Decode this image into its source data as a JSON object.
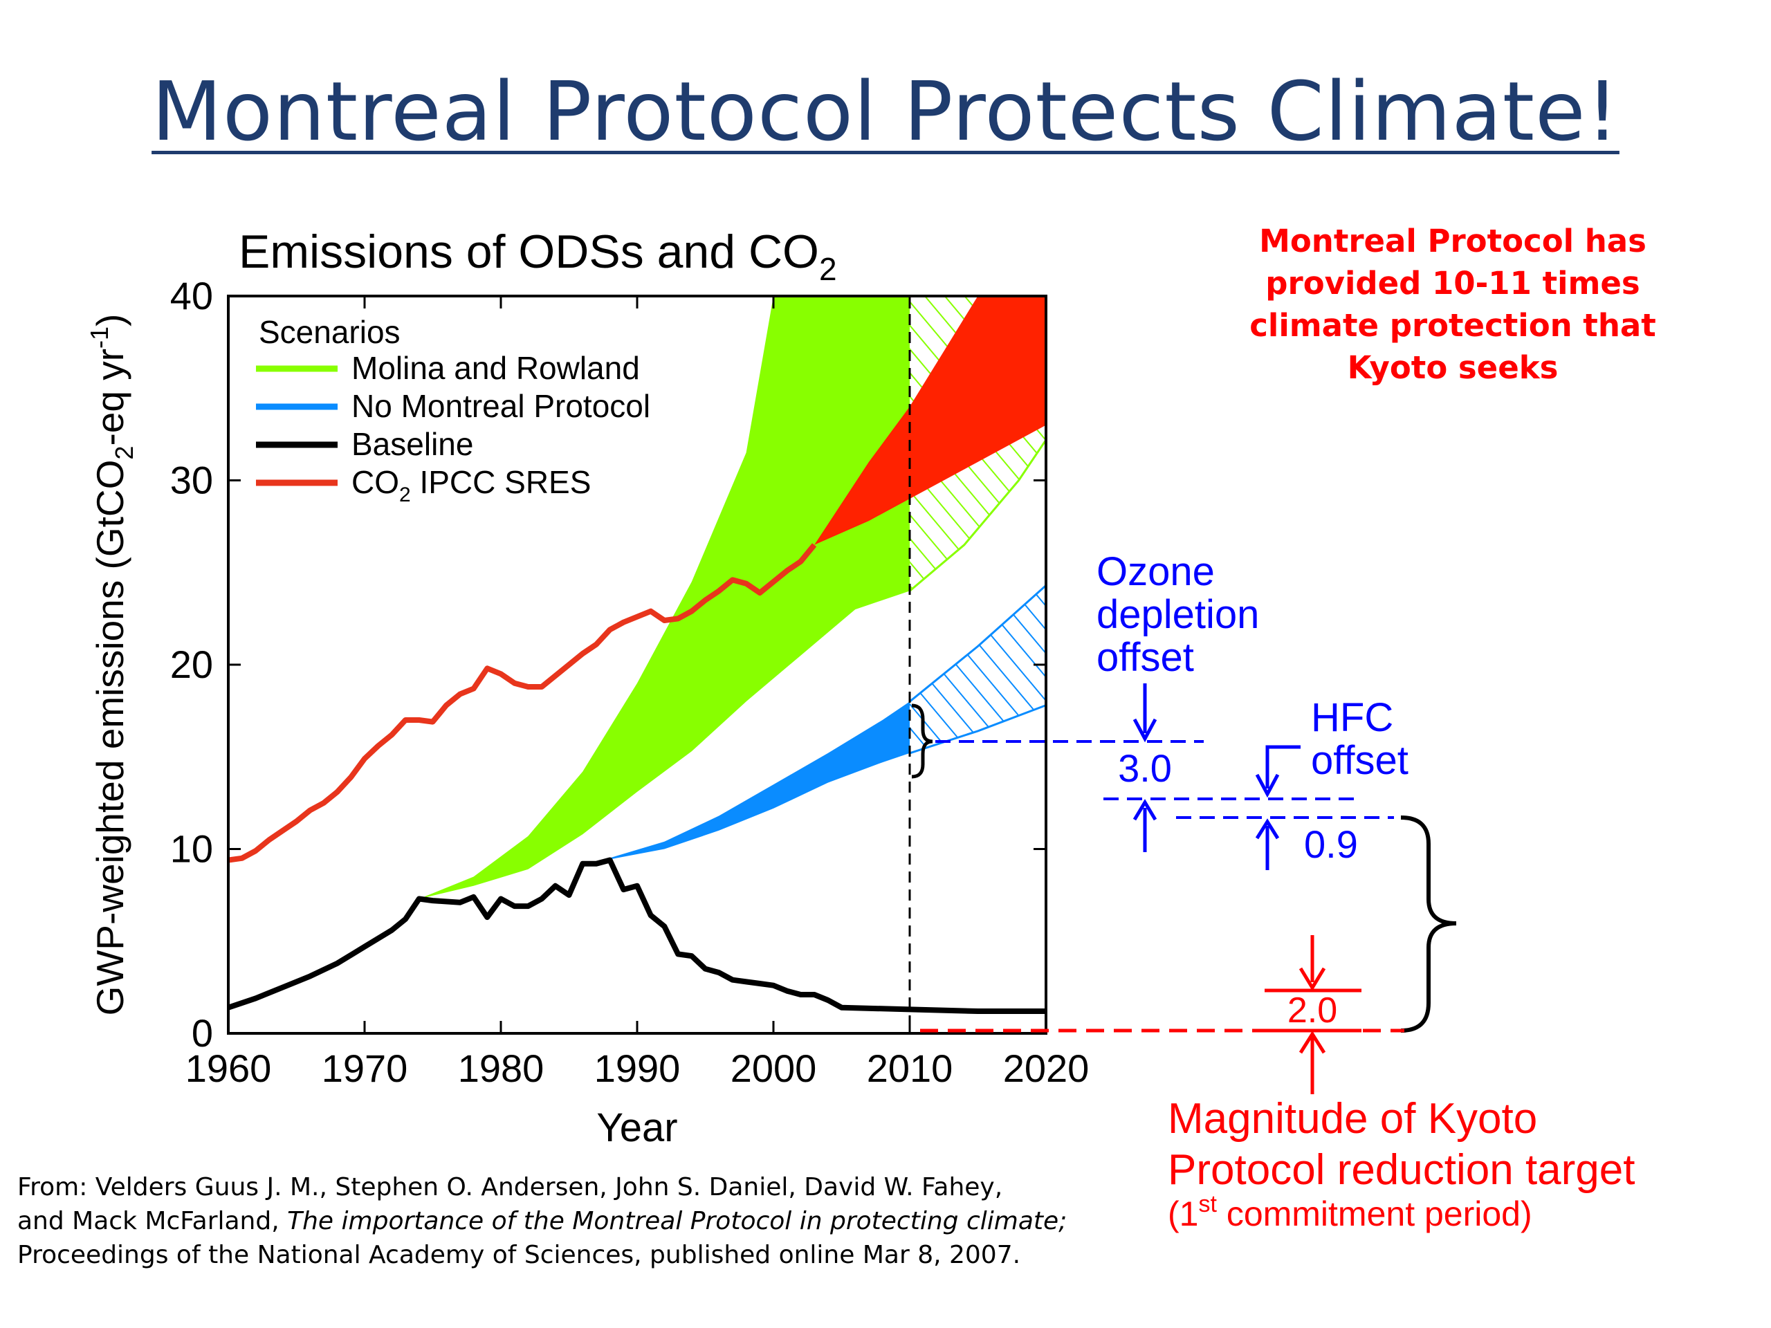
{
  "slide_title": "Montreal Protocol Protects Climate!",
  "callout": [
    "Montreal Protocol has",
    "provided 10-11 times",
    "climate protection that",
    "Kyoto seeks"
  ],
  "citation": {
    "line1": "From: Velders Guus J. M., Stephen O. Andersen, John S. Daniel, David W. Fahey,",
    "line2_pre": "and Mack McFarland, ",
    "line2_italic": "The importance of the Montreal Protocol in protecting climate;",
    "line3": "Proceedings of the National Academy of Sciences, published online Mar 8, 2007."
  },
  "annotations": {
    "ozone_offset": [
      "Ozone",
      "depletion",
      "offset"
    ],
    "ozone_value": "3.0",
    "hfc_offset": [
      "HFC",
      "offset"
    ],
    "hfc_value": "0.9",
    "kyoto_value": "2.0",
    "kyoto_label": [
      "Magnitude of Kyoto",
      "Protocol reduction target"
    ],
    "kyoto_period": [
      "(1",
      "st",
      " commitment period)"
    ]
  },
  "colors": {
    "title": "#1f3c6e",
    "green": "#88ff00",
    "blue": "#0a8cff",
    "red_area": "#ff2200",
    "red_line": "#e8351c",
    "black": "#000000",
    "annot_blue": "#0000ff",
    "annot_red": "#ff0000"
  },
  "chart_data": {
    "type": "area",
    "title": "Emissions of ODSs and CO",
    "title_sub": "2",
    "xlabel": "Year",
    "ylabel_parts": [
      "GWP-weighted emissions (GtCO",
      "2",
      "-eq yr",
      "-1",
      ")"
    ],
    "xlim": [
      1960,
      2020
    ],
    "ylim": [
      0,
      40
    ],
    "x_ticks": [
      1960,
      1970,
      1980,
      1990,
      2000,
      2010,
      2020
    ],
    "y_ticks": [
      0,
      10,
      20,
      30,
      40
    ],
    "divider_year": 2010,
    "legend_title": "Scenarios",
    "legend_position": "top-left",
    "legend": [
      {
        "label": "Molina and Rowland",
        "color": "#88ff00"
      },
      {
        "label": "No Montreal Protocol",
        "color": "#0a8cff"
      },
      {
        "label": "Baseline",
        "color": "#000000"
      },
      {
        "label_parts": [
          "CO",
          "2",
          " IPCC SRES"
        ],
        "color": "#e8351c"
      }
    ],
    "series": [
      {
        "name": "Molina and Rowland",
        "kind": "band",
        "upper": [
          [
            1974,
            7.3
          ],
          [
            1978,
            8.5
          ],
          [
            1982,
            10.7
          ],
          [
            1986,
            14.2
          ],
          [
            1990,
            19.0
          ],
          [
            1994,
            24.5
          ],
          [
            1998,
            31.5
          ],
          [
            2000,
            40
          ]
        ],
        "upper_continue": [
          [
            2000,
            40
          ],
          [
            2010,
            40
          ]
        ],
        "lower": [
          [
            1974,
            7.3
          ],
          [
            1978,
            8.0
          ],
          [
            1982,
            8.9
          ],
          [
            1986,
            10.8
          ],
          [
            1990,
            13.1
          ],
          [
            1994,
            15.3
          ],
          [
            1998,
            18.0
          ],
          [
            2002,
            20.5
          ],
          [
            2006,
            23.0
          ],
          [
            2010,
            24.0
          ]
        ],
        "projection_upper": [
          [
            2010,
            38
          ],
          [
            2013,
            40
          ]
        ],
        "projection_lower": [
          [
            2010,
            24.0
          ],
          [
            2014,
            26.5
          ],
          [
            2018,
            30.0
          ],
          [
            2020,
            32.2
          ]
        ]
      },
      {
        "name": "No Montreal Protocol",
        "kind": "band",
        "upper": [
          [
            1987,
            9.3
          ],
          [
            1992,
            10.4
          ],
          [
            1996,
            11.8
          ],
          [
            2000,
            13.5
          ],
          [
            2004,
            15.2
          ],
          [
            2008,
            17.0
          ],
          [
            2010,
            18.0
          ]
        ],
        "lower": [
          [
            1987,
            9.3
          ],
          [
            1992,
            10.0
          ],
          [
            1996,
            11.0
          ],
          [
            2000,
            12.2
          ],
          [
            2004,
            13.6
          ],
          [
            2008,
            14.7
          ],
          [
            2010,
            15.2
          ]
        ],
        "projection_upper": [
          [
            2010,
            18.0
          ],
          [
            2015,
            21.0
          ],
          [
            2020,
            24.3
          ]
        ],
        "projection_lower": [
          [
            2010,
            15.2
          ],
          [
            2015,
            16.4
          ],
          [
            2020,
            17.8
          ]
        ]
      },
      {
        "name": "CO2 IPCC SRES",
        "kind": "band",
        "upper": [
          [
            2003,
            26.5
          ],
          [
            2007,
            31.0
          ],
          [
            2010,
            34.0
          ],
          [
            2015,
            40.0
          ],
          [
            2020,
            40.0
          ]
        ],
        "lower": [
          [
            2003,
            26.5
          ],
          [
            2007,
            27.8
          ],
          [
            2010,
            29.0
          ],
          [
            2015,
            31.0
          ],
          [
            2020,
            33.0
          ]
        ]
      },
      {
        "name": "CO2 IPCC SRES",
        "kind": "line",
        "points": [
          [
            1960,
            9.4
          ],
          [
            1961,
            9.5
          ],
          [
            1962,
            9.9
          ],
          [
            1963,
            10.5
          ],
          [
            1964,
            11.0
          ],
          [
            1965,
            11.5
          ],
          [
            1966,
            12.1
          ],
          [
            1967,
            12.5
          ],
          [
            1968,
            13.1
          ],
          [
            1969,
            13.9
          ],
          [
            1970,
            14.9
          ],
          [
            1971,
            15.6
          ],
          [
            1972,
            16.2
          ],
          [
            1973,
            17.0
          ],
          [
            1974,
            17.0
          ],
          [
            1975,
            16.9
          ],
          [
            1976,
            17.8
          ],
          [
            1977,
            18.4
          ],
          [
            1978,
            18.7
          ],
          [
            1979,
            19.8
          ],
          [
            1980,
            19.5
          ],
          [
            1981,
            19.0
          ],
          [
            1982,
            18.8
          ],
          [
            1983,
            18.8
          ],
          [
            1984,
            19.4
          ],
          [
            1985,
            20.0
          ],
          [
            1986,
            20.6
          ],
          [
            1987,
            21.1
          ],
          [
            1988,
            21.9
          ],
          [
            1989,
            22.3
          ],
          [
            1990,
            22.6
          ],
          [
            1991,
            22.9
          ],
          [
            1992,
            22.4
          ],
          [
            1993,
            22.5
          ],
          [
            1994,
            22.9
          ],
          [
            1995,
            23.5
          ],
          [
            1996,
            24.0
          ],
          [
            1997,
            24.6
          ],
          [
            1998,
            24.4
          ],
          [
            1999,
            23.9
          ],
          [
            2000,
            24.5
          ],
          [
            2001,
            25.1
          ],
          [
            2002,
            25.6
          ],
          [
            2003,
            26.5
          ]
        ]
      },
      {
        "name": "Baseline",
        "kind": "line",
        "points": [
          [
            1960,
            1.4
          ],
          [
            1962,
            1.9
          ],
          [
            1964,
            2.5
          ],
          [
            1966,
            3.1
          ],
          [
            1968,
            3.8
          ],
          [
            1970,
            4.7
          ],
          [
            1972,
            5.6
          ],
          [
            1973,
            6.2
          ],
          [
            1974,
            7.3
          ],
          [
            1975,
            7.2
          ],
          [
            1977,
            7.1
          ],
          [
            1978,
            7.4
          ],
          [
            1979,
            6.3
          ],
          [
            1980,
            7.3
          ],
          [
            1981,
            6.9
          ],
          [
            1982,
            6.9
          ],
          [
            1983,
            7.3
          ],
          [
            1984,
            8.0
          ],
          [
            1985,
            7.5
          ],
          [
            1986,
            9.2
          ],
          [
            1987,
            9.2
          ],
          [
            1988,
            9.4
          ],
          [
            1989,
            7.8
          ],
          [
            1990,
            8.0
          ],
          [
            1991,
            6.4
          ],
          [
            1992,
            5.8
          ],
          [
            1993,
            4.3
          ],
          [
            1994,
            4.2
          ],
          [
            1995,
            3.5
          ],
          [
            1996,
            3.3
          ],
          [
            1997,
            2.9
          ],
          [
            1998,
            2.8
          ],
          [
            1999,
            2.7
          ],
          [
            2000,
            2.6
          ],
          [
            2001,
            2.3
          ],
          [
            2002,
            2.1
          ],
          [
            2003,
            2.1
          ],
          [
            2004,
            1.8
          ],
          [
            2005,
            1.4
          ],
          [
            2010,
            1.3
          ],
          [
            2015,
            1.2
          ],
          [
            2020,
            1.2
          ]
        ]
      }
    ]
  }
}
